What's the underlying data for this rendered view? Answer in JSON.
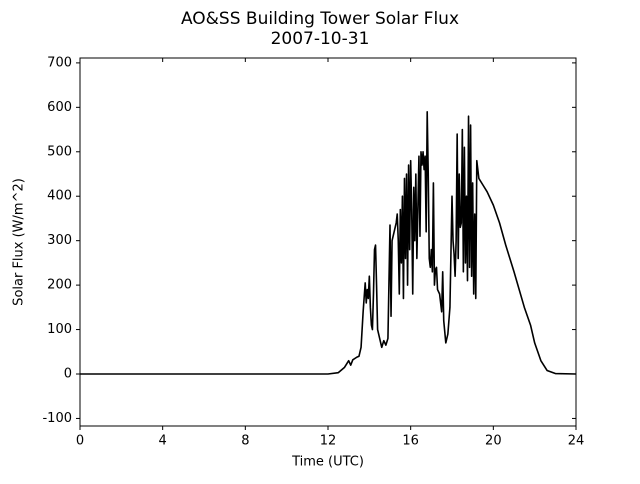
{
  "chart_data": {
    "type": "line",
    "title": "AO&SS Building Tower Solar Flux",
    "subtitle": "2007-10-31",
    "x_label": "Time (UTC)",
    "y_label": "Solar Flux (W/m^2)",
    "xlim": [
      0,
      24
    ],
    "xticks": [
      0,
      4,
      8,
      12,
      16,
      20,
      24
    ],
    "ylim": [
      -117,
      711
    ],
    "yticks": [
      -100,
      0,
      100,
      200,
      300,
      400,
      500,
      600,
      700
    ],
    "grid": false,
    "x": [
      0,
      12,
      12.5,
      12.8,
      13.0,
      13.1,
      13.2,
      13.4,
      13.5,
      13.6,
      13.7,
      13.8,
      13.85,
      13.9,
      13.95,
      14.0,
      14.05,
      14.1,
      14.15,
      14.2,
      14.25,
      14.3,
      14.35,
      14.4,
      14.5,
      14.6,
      14.7,
      14.8,
      14.9,
      15.0,
      15.05,
      15.1,
      15.2,
      15.3,
      15.35,
      15.4,
      15.45,
      15.5,
      15.55,
      15.6,
      15.65,
      15.7,
      15.75,
      15.8,
      15.85,
      15.9,
      15.95,
      16.0,
      16.05,
      16.1,
      16.15,
      16.2,
      16.25,
      16.3,
      16.4,
      16.45,
      16.5,
      16.55,
      16.6,
      16.65,
      16.7,
      16.75,
      16.8,
      16.85,
      16.9,
      16.95,
      17.0,
      17.05,
      17.1,
      17.15,
      17.2,
      17.25,
      17.3,
      17.4,
      17.5,
      17.55,
      17.6,
      17.7,
      17.8,
      17.9,
      18.0,
      18.05,
      18.1,
      18.15,
      18.2,
      18.25,
      18.3,
      18.35,
      18.4,
      18.45,
      18.5,
      18.55,
      18.6,
      18.65,
      18.7,
      18.75,
      18.8,
      18.85,
      18.9,
      18.95,
      19.0,
      19.05,
      19.1,
      19.15,
      19.2,
      19.3,
      19.5,
      19.7,
      20.0,
      20.3,
      20.6,
      21.0,
      21.5,
      21.8,
      22.0,
      22.3,
      22.6,
      23.0,
      24
    ],
    "series": [
      {
        "name": "Solar Flux",
        "color": "#000000",
        "values": [
          0,
          0,
          3,
          15,
          30,
          20,
          32,
          38,
          40,
          60,
          140,
          205,
          160,
          190,
          170,
          220,
          150,
          110,
          100,
          180,
          280,
          290,
          200,
          100,
          80,
          60,
          75,
          65,
          80,
          335,
          130,
          300,
          320,
          340,
          360,
          300,
          180,
          370,
          250,
          400,
          170,
          440,
          260,
          450,
          200,
          470,
          280,
          480,
          370,
          180,
          420,
          300,
          450,
          260,
          490,
          310,
          500,
          470,
          500,
          460,
          490,
          320,
          590,
          450,
          260,
          240,
          280,
          230,
          430,
          200,
          235,
          240,
          190,
          180,
          140,
          230,
          120,
          70,
          90,
          150,
          400,
          300,
          270,
          220,
          300,
          540,
          260,
          450,
          330,
          340,
          550,
          230,
          510,
          250,
          400,
          210,
          580,
          240,
          560,
          220,
          430,
          180,
          360,
          170,
          480,
          440,
          425,
          410,
          380,
          340,
          290,
          230,
          150,
          110,
          70,
          30,
          8,
          1,
          0
        ]
      }
    ]
  }
}
